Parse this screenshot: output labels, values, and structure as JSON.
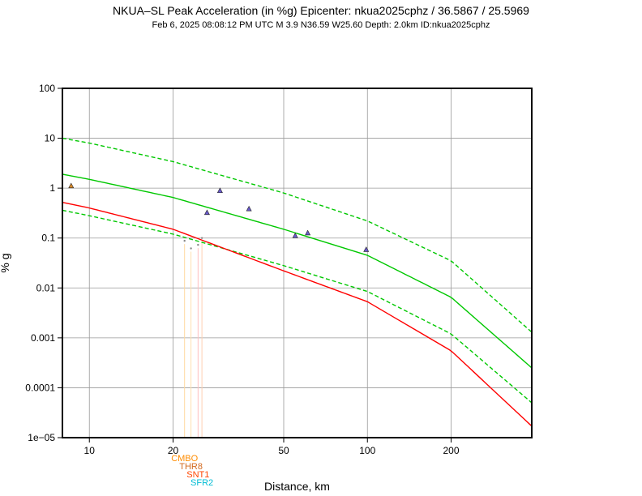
{
  "header": {
    "title": "NKUA–SL Peak Acceleration (in %g) Epicenter: nkua2025cphz / 36.5867 / 25.5969",
    "subtitle": "Feb  6, 2025 08:08:12 PM UTC   M 3.9   N36.59 W25.60   Depth: 2.0km   ID:nkua2025cphz"
  },
  "chart_data": {
    "type": "scatter",
    "title": "NKUA–SL Peak Acceleration (in %g) Epicenter: nkua2025cphz / 36.5867 / 25.5969",
    "xlabel": "Distance, km",
    "ylabel": "% g",
    "xscale": "log",
    "yscale": "log",
    "xlim": [
      8,
      390
    ],
    "ylim": [
      1e-05,
      100
    ],
    "grid": true,
    "x_ticks": [
      10,
      20,
      50,
      100,
      200
    ],
    "x_tick_labels": [
      "10",
      "20",
      "50",
      "100",
      "200"
    ],
    "y_ticks": [
      1e-05,
      0.0001,
      0.001,
      0.01,
      0.1,
      1,
      10,
      100
    ],
    "y_tick_labels": [
      "1e−05",
      "0.0001",
      "0.001",
      "0.01",
      "0.1",
      "1",
      "10",
      "100"
    ],
    "curves": [
      {
        "role": "gmpe-median",
        "color": "#00c800",
        "dashed": false,
        "x": [
          8,
          10,
          20,
          50,
          100,
          200,
          390
        ],
        "y": [
          1.9,
          1.5,
          0.65,
          0.15,
          0.045,
          0.0065,
          0.00025
        ]
      },
      {
        "role": "gmpe-upper",
        "color": "#00c800",
        "dashed": true,
        "x": [
          8,
          10,
          20,
          50,
          100,
          200,
          390
        ],
        "y": [
          10,
          8.0,
          3.4,
          0.8,
          0.22,
          0.035,
          0.0013
        ]
      },
      {
        "role": "gmpe-lower",
        "color": "#00c800",
        "dashed": true,
        "x": [
          8,
          10,
          20,
          50,
          100,
          200,
          390
        ],
        "y": [
          0.36,
          0.28,
          0.12,
          0.028,
          0.0085,
          0.0012,
          5e-05
        ]
      },
      {
        "role": "red-curve",
        "color": "#ff0000",
        "dashed": false,
        "x": [
          8,
          10,
          20,
          50,
          100,
          200,
          390
        ],
        "y": [
          0.52,
          0.4,
          0.15,
          0.022,
          0.0053,
          0.00055,
          1.7e-05
        ]
      }
    ],
    "points": [
      {
        "x": 8.6,
        "y": 1.1,
        "color": "#d98a2b",
        "marker": "triangle"
      },
      {
        "x": 26.5,
        "y": 0.32,
        "color": "#6a5acd",
        "marker": "triangle"
      },
      {
        "x": 29.5,
        "y": 0.88,
        "color": "#6a5acd",
        "marker": "triangle"
      },
      {
        "x": 37.5,
        "y": 0.38,
        "color": "#6a5acd",
        "marker": "triangle"
      },
      {
        "x": 55,
        "y": 0.11,
        "color": "#6a5acd",
        "marker": "triangle"
      },
      {
        "x": 61,
        "y": 0.125,
        "color": "#6a5acd",
        "marker": "triangle"
      },
      {
        "x": 99,
        "y": 0.058,
        "color": "#6a5acd",
        "marker": "triangle"
      },
      {
        "x": 22.0,
        "y": 0.088,
        "color": "#888888",
        "marker": "dot"
      },
      {
        "x": 23.2,
        "y": 0.062,
        "color": "#888888",
        "marker": "dot"
      },
      {
        "x": 24.6,
        "y": 0.073,
        "color": "#888888",
        "marker": "dot"
      },
      {
        "x": 25.4,
        "y": 0.1,
        "color": "#888888",
        "marker": "dot"
      }
    ],
    "station_labels": [
      {
        "text": "CMBO",
        "x": 22.0,
        "color": "#ff8c00"
      },
      {
        "text": "THR8",
        "x": 23.2,
        "color": "#d2691e"
      },
      {
        "text": "SNT1",
        "x": 24.6,
        "color": "#ff4500"
      },
      {
        "text": "SFR2",
        "x": 25.4,
        "color": "#00bcd4"
      }
    ],
    "station_line_colors": [
      "#ffd8a0",
      "#ffe0b0",
      "#ffc0c0",
      "#ffd0b0"
    ]
  }
}
